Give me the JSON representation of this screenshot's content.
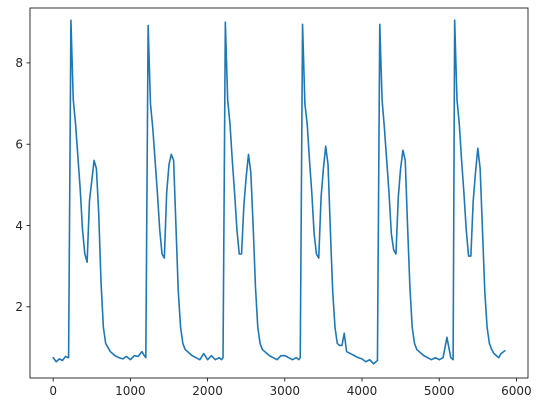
{
  "chart_data": {
    "type": "line",
    "title": "",
    "xlabel": "",
    "ylabel": "",
    "xlim": [
      -300,
      6150
    ],
    "ylim": [
      0.25,
      9.35
    ],
    "xticks": [
      0,
      1000,
      2000,
      3000,
      4000,
      5000,
      6000
    ],
    "yticks": [
      2,
      4,
      6,
      8
    ],
    "xtick_labels": [
      "0",
      "1000",
      "2000",
      "3000",
      "4000",
      "5000",
      "6000"
    ],
    "ytick_labels": [
      "2",
      "4",
      "6",
      "8"
    ],
    "grid": false,
    "legend": "none",
    "series": [
      {
        "color": "#1f77b4",
        "x": [
          0,
          40,
          80,
          120,
          160,
          200,
          230,
          260,
          290,
          320,
          350,
          380,
          410,
          440,
          470,
          500,
          530,
          560,
          590,
          620,
          650,
          680,
          710,
          740,
          770,
          800,
          850,
          900,
          950,
          1000,
          1050,
          1100,
          1150,
          1180,
          1200,
          1230,
          1260,
          1290,
          1320,
          1350,
          1380,
          1410,
          1440,
          1470,
          1500,
          1530,
          1560,
          1590,
          1620,
          1650,
          1680,
          1710,
          1740,
          1770,
          1800,
          1850,
          1900,
          1950,
          2000,
          2050,
          2100,
          2150,
          2180,
          2200,
          2230,
          2260,
          2290,
          2320,
          2350,
          2380,
          2410,
          2440,
          2470,
          2500,
          2530,
          2560,
          2590,
          2620,
          2650,
          2680,
          2710,
          2740,
          2770,
          2800,
          2850,
          2900,
          2950,
          3000,
          3050,
          3100,
          3150,
          3180,
          3200,
          3230,
          3260,
          3290,
          3320,
          3350,
          3380,
          3410,
          3440,
          3470,
          3500,
          3530,
          3560,
          3590,
          3620,
          3650,
          3680,
          3710,
          3740,
          3770,
          3800,
          3850,
          3900,
          3950,
          4000,
          4050,
          4100,
          4150,
          4180,
          4200,
          4230,
          4260,
          4290,
          4320,
          4350,
          4380,
          4410,
          4440,
          4470,
          4500,
          4530,
          4560,
          4590,
          4620,
          4650,
          4680,
          4710,
          4740,
          4770,
          4800,
          4850,
          4900,
          4950,
          5000,
          5050,
          5100,
          5150,
          5180,
          5200,
          5230,
          5260,
          5290,
          5320,
          5350,
          5380,
          5410,
          5440,
          5470,
          5500,
          5530,
          5560,
          5590,
          5620,
          5650,
          5680,
          5710,
          5740,
          5770,
          5800,
          5850
        ],
        "y": [
          0.75,
          0.65,
          0.72,
          0.68,
          0.78,
          0.75,
          9.05,
          7.1,
          6.5,
          5.7,
          4.9,
          3.9,
          3.3,
          3.1,
          4.6,
          5.1,
          5.6,
          5.4,
          4.3,
          2.6,
          1.5,
          1.1,
          1.0,
          0.9,
          0.85,
          0.8,
          0.75,
          0.72,
          0.78,
          0.7,
          0.8,
          0.78,
          0.9,
          0.8,
          0.75,
          8.92,
          7.0,
          6.4,
          5.6,
          4.8,
          3.9,
          3.3,
          3.2,
          4.8,
          5.5,
          5.75,
          5.6,
          4.0,
          2.4,
          1.5,
          1.1,
          0.95,
          0.9,
          0.85,
          0.8,
          0.75,
          0.7,
          0.85,
          0.7,
          0.8,
          0.7,
          0.75,
          0.7,
          0.75,
          9.0,
          7.1,
          6.5,
          5.6,
          4.8,
          3.9,
          3.3,
          3.3,
          4.5,
          5.2,
          5.75,
          5.3,
          4.0,
          2.5,
          1.5,
          1.1,
          0.95,
          0.9,
          0.85,
          0.8,
          0.75,
          0.7,
          0.8,
          0.8,
          0.75,
          0.7,
          0.75,
          0.7,
          0.75,
          8.95,
          7.0,
          6.5,
          5.6,
          4.8,
          3.8,
          3.3,
          3.2,
          4.7,
          5.4,
          5.95,
          5.5,
          3.9,
          2.4,
          1.5,
          1.1,
          1.05,
          1.05,
          1.35,
          0.9,
          0.85,
          0.8,
          0.75,
          0.72,
          0.65,
          0.7,
          0.6,
          0.65,
          0.68,
          8.95,
          7.1,
          6.4,
          5.6,
          4.8,
          3.8,
          3.4,
          3.3,
          4.7,
          5.4,
          5.85,
          5.6,
          4.0,
          2.5,
          1.5,
          1.1,
          0.95,
          0.9,
          0.85,
          0.8,
          0.75,
          0.7,
          0.75,
          0.7,
          0.75,
          1.25,
          0.75,
          0.7,
          9.05,
          7.1,
          6.5,
          5.6,
          4.8,
          3.9,
          3.25,
          3.25,
          4.6,
          5.3,
          5.9,
          5.4,
          3.9,
          2.4,
          1.5,
          1.1,
          0.95,
          0.85,
          0.8,
          0.75,
          0.85,
          0.92
        ]
      }
    ]
  }
}
